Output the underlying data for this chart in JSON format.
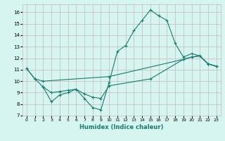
{
  "line1_x": [
    0,
    1,
    2,
    3,
    4,
    5,
    6,
    7,
    8,
    9,
    10,
    11,
    12,
    13,
    14,
    15,
    16,
    17,
    18,
    19,
    20,
    21,
    22,
    23
  ],
  "line1_y": [
    11.1,
    10.2,
    9.5,
    8.2,
    8.8,
    9.0,
    9.3,
    8.5,
    7.7,
    7.5,
    9.9,
    12.6,
    13.1,
    14.4,
    15.3,
    16.2,
    15.7,
    15.3,
    13.3,
    12.1,
    12.4,
    12.2,
    11.5,
    11.3
  ],
  "line2_x": [
    0,
    1,
    2,
    10,
    19,
    20,
    21,
    22,
    23
  ],
  "line2_y": [
    11.1,
    10.2,
    10.0,
    10.4,
    11.9,
    12.1,
    12.2,
    11.5,
    11.3
  ],
  "line3_x": [
    2,
    3,
    4,
    5,
    6,
    7,
    8,
    9,
    10,
    15,
    19,
    20,
    21,
    22,
    23
  ],
  "line3_y": [
    9.5,
    9.0,
    9.1,
    9.2,
    9.3,
    8.9,
    8.6,
    8.5,
    9.6,
    10.2,
    11.9,
    12.1,
    12.2,
    11.5,
    11.3
  ],
  "color": "#1a7a6e",
  "bg_color": "#d6f5f0",
  "grid_color": "#c8b8b8",
  "xlabel": "Humidex (Indice chaleur)",
  "xlim": [
    -0.5,
    23.5
  ],
  "ylim": [
    7.0,
    16.7
  ],
  "yticks": [
    7,
    8,
    9,
    10,
    11,
    12,
    13,
    14,
    15,
    16
  ],
  "xticks": [
    0,
    1,
    2,
    3,
    4,
    5,
    6,
    7,
    8,
    9,
    10,
    11,
    12,
    13,
    14,
    15,
    16,
    17,
    18,
    19,
    20,
    21,
    22,
    23
  ]
}
